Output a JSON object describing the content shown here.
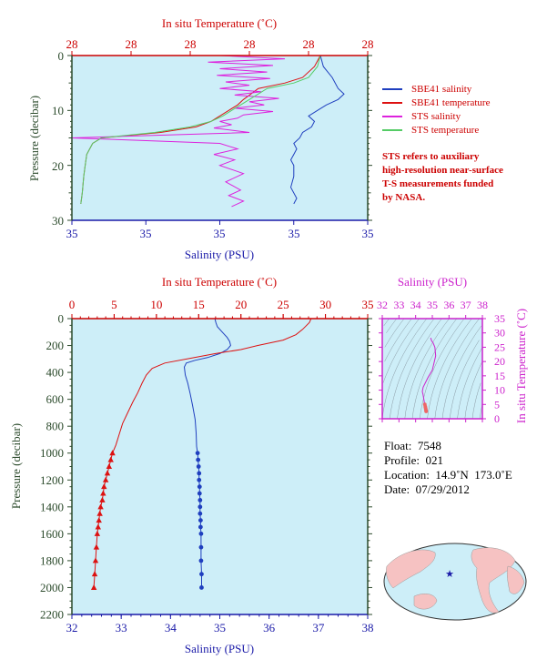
{
  "top_chart": {
    "x_top_label": "In situ Temperature (˚C)",
    "x_top_ticks": [
      "28",
      "28",
      "28",
      "28",
      "28",
      "28"
    ],
    "x_bottom_label": "Salinity (PSU)",
    "x_bottom_ticks": [
      "35",
      "35",
      "35",
      "35",
      "35"
    ],
    "y_label": "Pressure (decibar)",
    "y_ticks": [
      "0",
      "10",
      "20",
      "30"
    ]
  },
  "legend": {
    "items": [
      {
        "label": "SBE41 salinity",
        "color": "#1f3fbf"
      },
      {
        "label": "SBE41 temperature",
        "color": "#dd1111"
      },
      {
        "label": "STS salinity",
        "color": "#dd22dd"
      },
      {
        "label": "STS temperature",
        "color": "#55cc66"
      }
    ],
    "note_lines": [
      "STS refers to auxiliary",
      "high-resolution near-surface",
      "T-S measurements funded",
      "by NASA."
    ]
  },
  "main_chart": {
    "x_top_label": "In situ Temperature (˚C)",
    "x_top_ticks": [
      "0",
      "5",
      "10",
      "15",
      "20",
      "25",
      "30",
      "35"
    ],
    "x_bottom_label": "Salinity (PSU)",
    "x_bottom_ticks": [
      "32",
      "33",
      "34",
      "35",
      "36",
      "37",
      "38"
    ],
    "y_label": "Pressure (decibar)",
    "y_ticks": [
      "0",
      "200",
      "400",
      "600",
      "800",
      "1000",
      "1200",
      "1400",
      "1600",
      "1800",
      "2000",
      "2200"
    ]
  },
  "ts_chart": {
    "x_label": "Salinity (PSU)",
    "x_ticks": [
      "32",
      "33",
      "34",
      "35",
      "36",
      "37",
      "38"
    ],
    "y_label": "In situ Temperature (˚C)",
    "y_ticks": [
      "0",
      "5",
      "10",
      "15",
      "20",
      "25",
      "30",
      "35"
    ]
  },
  "float_info": {
    "float": "Float:  7548",
    "profile": "Profile:  021",
    "location": "Location:  14.9˚N  173.0˚E",
    "date": "Date:  07/29/2012"
  },
  "colors": {
    "plot_bg": "#cdeef8",
    "axis_red": "#cc0000",
    "axis_blue": "#1a1aa8",
    "axis_green": "#2b4a2b",
    "axis_magenta": "#cc22cc",
    "salinity": "#1f3fbf",
    "temperature": "#dd1111",
    "map_land": "#f6c2c2",
    "map_ocean": "#cdeef8",
    "float_marker": "#1a1aa8"
  },
  "map": {
    "float_lat": 14.9,
    "float_lon": 173.0,
    "projection": "pacific-centered oval world map"
  },
  "chart_data": [
    {
      "type": "line",
      "name": "main profile",
      "title": "",
      "xlabel": "Salinity (PSU)",
      "x2label": "In situ Temperature (˚C)",
      "ylabel": "Pressure (decibar)",
      "xlim": [
        32,
        38
      ],
      "x2lim": [
        0,
        35
      ],
      "ylim": [
        2200,
        0
      ],
      "grid": false,
      "series": [
        {
          "name": "SBE41 salinity",
          "axis": "x",
          "x": [
            34.9,
            34.92,
            34.95,
            35.05,
            35.15,
            35.2,
            35.22,
            35.15,
            35.0,
            34.75,
            34.5,
            34.32,
            34.28,
            34.3,
            34.35,
            34.4,
            34.45,
            34.5,
            34.52,
            34.53,
            34.55,
            34.56,
            34.57,
            34.58,
            34.58,
            34.59,
            34.59,
            34.6,
            34.6,
            34.6,
            34.61,
            34.61,
            34.62,
            34.62,
            34.62,
            34.63,
            34.63
          ],
          "y": [
            0,
            30,
            60,
            100,
            140,
            170,
            200,
            230,
            260,
            290,
            310,
            330,
            360,
            420,
            480,
            560,
            650,
            750,
            850,
            950,
            1000,
            1050,
            1100,
            1150,
            1200,
            1250,
            1300,
            1350,
            1400,
            1450,
            1500,
            1550,
            1600,
            1700,
            1800,
            1900,
            2000
          ]
        },
        {
          "name": "SBE41 temperature",
          "axis": "x2",
          "x": [
            28.3,
            28.1,
            27.3,
            26.5,
            25.0,
            22.0,
            20.0,
            17.0,
            14.5,
            11.0,
            9.5,
            8.8,
            8.3,
            7.8,
            7.2,
            6.6,
            6.0,
            5.6,
            5.2,
            4.8,
            4.6,
            4.4,
            4.2,
            4.0,
            3.8,
            3.7,
            3.6,
            3.4,
            3.3,
            3.2,
            3.1,
            3.0,
            2.9,
            2.8,
            2.7,
            2.6
          ],
          "y": [
            0,
            30,
            80,
            120,
            160,
            200,
            230,
            260,
            290,
            330,
            370,
            420,
            480,
            550,
            620,
            700,
            780,
            860,
            940,
            1000,
            1050,
            1100,
            1150,
            1200,
            1250,
            1300,
            1350,
            1400,
            1450,
            1500,
            1550,
            1600,
            1700,
            1800,
            1900,
            2000
          ]
        }
      ]
    },
    {
      "type": "line",
      "name": "near-surface detail",
      "title": "",
      "xlabel": "Salinity (PSU)",
      "x2label": "In situ Temperature (˚C)",
      "ylabel": "Pressure (decibar)",
      "xlim": [
        0,
        1
      ],
      "x2lim": [
        0,
        1
      ],
      "ylim": [
        30,
        0
      ],
      "grid": false,
      "series": [
        {
          "name": "SBE41 salinity",
          "axis": "x",
          "x": [
            0.84,
            0.85,
            0.88,
            0.9,
            0.92,
            0.9,
            0.86,
            0.83,
            0.8,
            0.82,
            0.81,
            0.78,
            0.77,
            0.75,
            0.76,
            0.75,
            0.74,
            0.75,
            0.75,
            0.74,
            0.76,
            0.75
          ],
          "y": [
            0,
            2,
            4,
            6,
            7,
            8,
            9,
            10,
            11,
            12,
            13,
            14,
            15,
            16,
            17,
            18,
            19,
            20,
            22,
            24,
            26,
            27
          ]
        },
        {
          "name": "SBE41 temperature",
          "axis": "x2",
          "x": [
            0.84,
            0.82,
            0.78,
            0.72,
            0.63,
            0.58,
            0.56,
            0.53,
            0.5,
            0.47,
            0.42,
            0.3,
            0.1,
            0.07,
            0.06,
            0.05,
            0.045,
            0.04,
            0.035,
            0.03
          ],
          "y": [
            0,
            2,
            4,
            5,
            6,
            8,
            9,
            10,
            11,
            12,
            13,
            14,
            15,
            16,
            17,
            18,
            20,
            22,
            25,
            27
          ]
        },
        {
          "name": "STS salinity",
          "axis": "x",
          "x": [
            0.5,
            0.72,
            0.46,
            0.68,
            0.5,
            0.66,
            0.49,
            0.67,
            0.52,
            0.6,
            0.5,
            0.64,
            0.55,
            0.7,
            0.6,
            0.65,
            0.55,
            0.68,
            0.58,
            0.56,
            0.5,
            0.54,
            0.48,
            0.6,
            0.0,
            0.5,
            0.56,
            0.48,
            0.55,
            0.5,
            0.58,
            0.52,
            0.57,
            0.53,
            0.58,
            0.54
          ],
          "y": [
            0,
            0.6,
            1.2,
            1.8,
            2.4,
            3,
            3.6,
            4.2,
            4.8,
            5.4,
            6,
            6.6,
            7.2,
            7.8,
            8.4,
            9,
            9.6,
            10.2,
            10.8,
            11.4,
            12,
            12.6,
            13.2,
            14,
            15,
            16,
            17,
            18,
            19,
            20,
            21.5,
            23,
            24.5,
            25.5,
            26.5,
            27.5
          ]
        },
        {
          "name": "STS temperature",
          "axis": "x2",
          "x": [
            0.84,
            0.83,
            0.8,
            0.75,
            0.66,
            0.6,
            0.57,
            0.54,
            0.51,
            0.47,
            0.4,
            0.28,
            0.1,
            0.07,
            0.06,
            0.05,
            0.045,
            0.04,
            0.035,
            0.03
          ],
          "y": [
            0,
            2,
            4,
            5,
            6,
            8,
            9,
            10,
            11,
            12,
            13,
            14,
            15,
            16,
            17,
            18,
            20,
            22,
            25,
            27
          ]
        }
      ]
    },
    {
      "type": "scatter",
      "name": "T-S diagram",
      "title": "",
      "xlabel": "Salinity (PSU)",
      "ylabel": "In situ Temperature (˚C)",
      "xlim": [
        32,
        38
      ],
      "ylim": [
        0,
        35
      ],
      "series": [
        {
          "name": "profile",
          "x": [
            34.9,
            34.95,
            35.05,
            35.15,
            35.2,
            35.0,
            34.75,
            34.45,
            34.4,
            34.45,
            34.5,
            34.55,
            34.58,
            34.6,
            34.62,
            34.63
          ],
          "y": [
            28.3,
            27.3,
            26.5,
            25.0,
            22.0,
            17.0,
            14.5,
            11.0,
            9.5,
            8.3,
            6.6,
            5.0,
            4.2,
            3.6,
            3.0,
            2.6
          ]
        }
      ]
    }
  ]
}
